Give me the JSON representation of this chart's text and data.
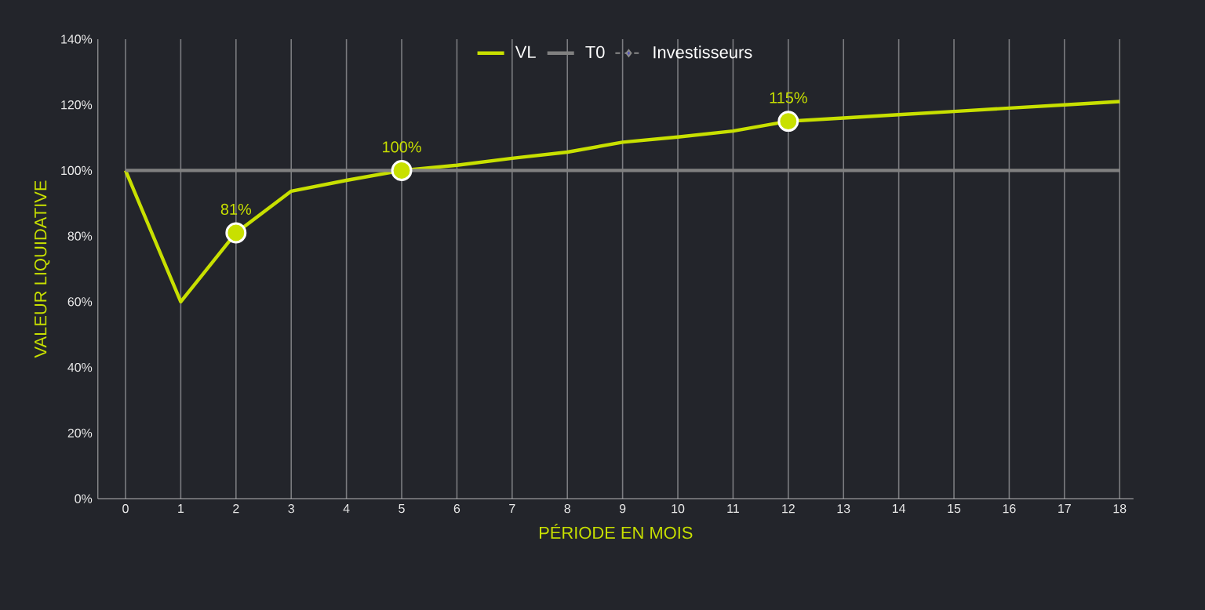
{
  "chart_data": {
    "type": "line",
    "xlabel": "PÉRIODE EN MOIS",
    "ylabel": "VALEUR LIQUIDATIVE",
    "categories": [
      "0",
      "1",
      "2",
      "3",
      "4",
      "5",
      "6",
      "7",
      "8",
      "9",
      "10",
      "11",
      "12",
      "13",
      "14",
      "15",
      "16",
      "17",
      "18"
    ],
    "ylim": [
      0,
      140
    ],
    "yticks": [
      {
        "value": 0,
        "label": "0%"
      },
      {
        "value": 20,
        "label": "20%"
      },
      {
        "value": 40,
        "label": "40%"
      },
      {
        "value": 60,
        "label": "60%"
      },
      {
        "value": 80,
        "label": "80%"
      },
      {
        "value": 100,
        "label": "100%"
      },
      {
        "value": 120,
        "label": "120%"
      },
      {
        "value": 140,
        "label": "140%"
      }
    ],
    "grid": "x",
    "legend": "top",
    "series": [
      {
        "name": "VL",
        "color": "#c8e000",
        "values": [
          100,
          60,
          81,
          93.7,
          97,
          100,
          101.6,
          103.7,
          105.6,
          108.6,
          110.2,
          112,
          115,
          116,
          117,
          118,
          119,
          120,
          121
        ]
      },
      {
        "type": "scatter",
        "color": "#c8e000",
        "marker": "circle",
        "x": [
          "2",
          "5",
          "12"
        ],
        "values": [
          81,
          100,
          115
        ],
        "value_labels": [
          "81%",
          "100%",
          "115%"
        ]
      },
      {
        "name": "T0",
        "color": "#808080",
        "values": [
          100,
          100,
          100,
          100,
          100,
          100,
          100,
          100,
          100,
          100,
          100,
          100,
          100,
          100,
          100,
          100,
          100,
          100,
          100
        ]
      },
      {
        "name": "Investisseurs",
        "color": "#8a8a8a",
        "marker": "diamond",
        "line_style": "dashed",
        "values": [
          null,
          null,
          null,
          null,
          null,
          null,
          null,
          null,
          null,
          null,
          null,
          null,
          null,
          null,
          null,
          null,
          null,
          null,
          null
        ]
      }
    ]
  }
}
